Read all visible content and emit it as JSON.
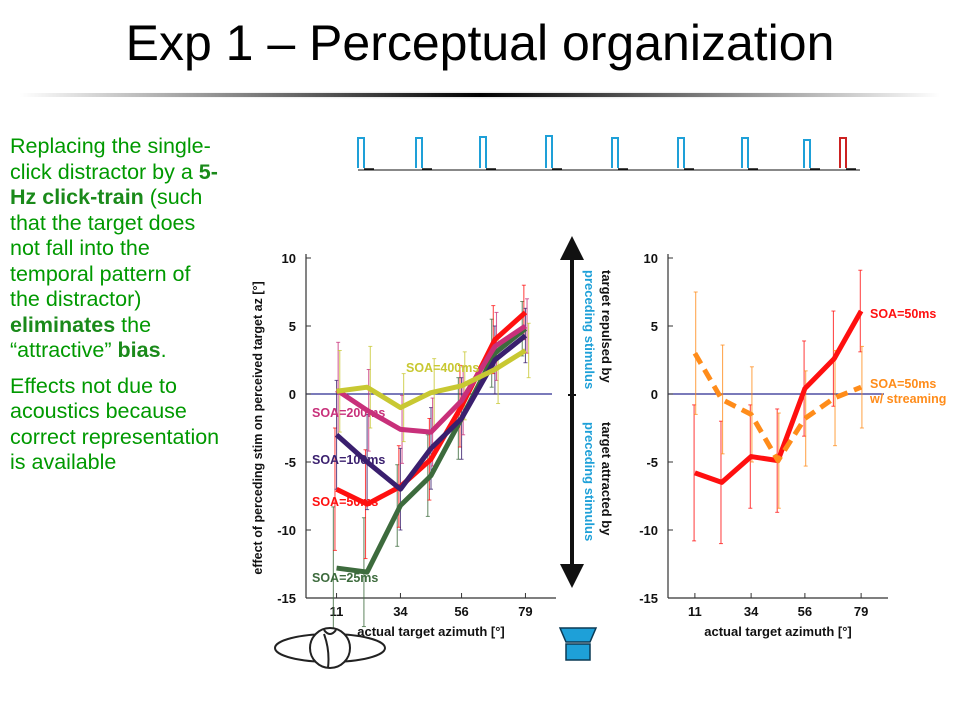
{
  "slide": {
    "title": "Exp 1 – Perceptual organization",
    "para1": [
      {
        "t": "Replacing the single-click distractor by a ",
        "b": false
      },
      {
        "t": "5-Hz click-train",
        "b": true
      },
      {
        "t": " (such that the target does not fall into the temporal pattern of the distractor) ",
        "b": false
      },
      {
        "t": "eliminates",
        "b": true
      },
      {
        "t": " the “attractive” ",
        "b": false
      },
      {
        "t": "bias",
        "b": true
      },
      {
        "t": ".",
        "b": false
      }
    ],
    "para2": "Effects not due to acoustics because correct representation is available"
  },
  "arrow": {
    "upper_black": "target repulsed by",
    "upper_blue": "preceding stimulus",
    "lower_black": "target attracted by",
    "lower_blue": "preceding stimulus"
  },
  "colors": {
    "pulse_blue": "#1ea0d8",
    "pulse_red": "#cc2222",
    "label_blue": "#1ea0d8"
  },
  "chart_data": [
    {
      "type": "line",
      "title": "",
      "xlabel": "actual target azimuth [°]",
      "ylabel": "effect of perceding stim on perceived target az [°]",
      "xlim": [
        0,
        90
      ],
      "ylim": [
        -15,
        10
      ],
      "xticks": [
        11,
        34,
        56,
        79
      ],
      "yticks": [
        10,
        5,
        0,
        -5,
        -10,
        -15
      ],
      "series": [
        {
          "name": "SOA=25ms",
          "color": "#3d6b3d",
          "x": [
            11,
            22,
            34,
            45,
            56,
            68,
            79
          ],
          "y": [
            -12.8,
            -13.1,
            -8.2,
            -6.0,
            -1.8,
            3.0,
            4.8
          ],
          "err": [
            4.5,
            4.0,
            3.0,
            3.0,
            3.0,
            2.5,
            2.0
          ]
        },
        {
          "name": "SOA=50ms",
          "color": "#ff1010",
          "x": [
            11,
            22,
            34,
            45,
            56,
            68,
            79
          ],
          "y": [
            -7.0,
            -8.1,
            -6.8,
            -4.8,
            -0.9,
            4.0,
            6.0
          ],
          "err": [
            4.5,
            4.0,
            3.0,
            3.0,
            3.0,
            2.5,
            2.0
          ]
        },
        {
          "name": "SOA=100ms",
          "color": "#3a1f6e",
          "x": [
            11,
            22,
            34,
            45,
            56,
            68,
            79
          ],
          "y": [
            -3.0,
            -5.0,
            -7.0,
            -4.0,
            -1.8,
            2.5,
            4.3
          ],
          "err": [
            4.0,
            3.5,
            3.0,
            3.0,
            3.0,
            2.5,
            2.0
          ]
        },
        {
          "name": "SOA=200ms",
          "color": "#c8307a",
          "x": [
            11,
            22,
            34,
            45,
            56,
            68,
            79
          ],
          "y": [
            0.3,
            -1.2,
            -2.6,
            -2.8,
            -0.5,
            3.5,
            5.0
          ],
          "err": [
            3.5,
            3.0,
            2.5,
            2.5,
            2.5,
            2.5,
            2.0
          ]
        },
        {
          "name": "SOA=400ms",
          "color": "#c8c832",
          "x": [
            11,
            22,
            34,
            45,
            56,
            68,
            79
          ],
          "y": [
            0.2,
            0.5,
            -1.0,
            0.1,
            0.6,
            1.8,
            3.2
          ],
          "err": [
            3.0,
            3.0,
            2.5,
            2.5,
            2.5,
            2.5,
            2.0
          ]
        }
      ]
    },
    {
      "type": "line",
      "title": "",
      "xlabel": "actual target azimuth [°]",
      "ylabel": "",
      "xlim": [
        0,
        90
      ],
      "ylim": [
        -15,
        10
      ],
      "xticks": [
        11,
        34,
        56,
        79
      ],
      "yticks": [
        10,
        5,
        0,
        -5,
        -10,
        -15
      ],
      "series": [
        {
          "name": "SOA=50ms",
          "color": "#ff1010",
          "dash": false,
          "x": [
            11,
            22,
            34,
            45,
            56,
            68,
            79
          ],
          "y": [
            -5.8,
            -6.5,
            -4.6,
            -4.9,
            0.4,
            2.6,
            6.1
          ],
          "err": [
            5.0,
            4.5,
            3.8,
            3.8,
            3.5,
            3.5,
            3.0
          ]
        },
        {
          "name": "SOA=50ms w/ streaming",
          "color": "#ff8c1a",
          "dash": true,
          "x": [
            11,
            22,
            34,
            45,
            56,
            68,
            79
          ],
          "y": [
            3.0,
            -0.4,
            -1.5,
            -4.9,
            -1.8,
            -0.3,
            0.5
          ],
          "err": [
            4.5,
            4.0,
            3.5,
            3.5,
            3.5,
            3.5,
            3.0
          ]
        }
      ]
    }
  ]
}
